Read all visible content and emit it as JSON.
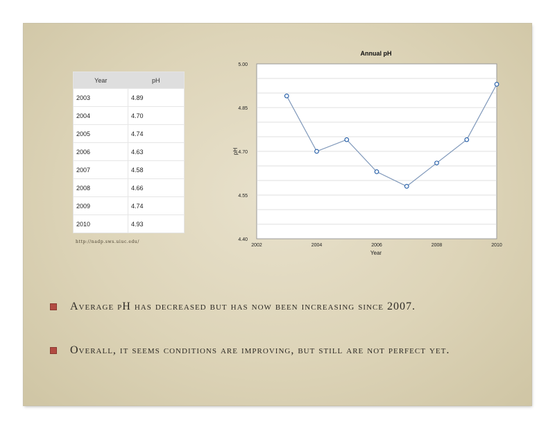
{
  "table": {
    "headers": [
      "Year",
      "pH"
    ],
    "rows": [
      [
        "2003",
        "4.89"
      ],
      [
        "2004",
        "4.70"
      ],
      [
        "2005",
        "4.74"
      ],
      [
        "2006",
        "4.63"
      ],
      [
        "2007",
        "4.58"
      ],
      [
        "2008",
        "4.66"
      ],
      [
        "2009",
        "4.74"
      ],
      [
        "2010",
        "4.93"
      ]
    ]
  },
  "source": "http://nadp.sws.uiuc.edu/",
  "chart_data": {
    "type": "line",
    "title": "Annual pH",
    "xlabel": "Year",
    "ylabel": "pH",
    "x": [
      2003,
      2004,
      2005,
      2006,
      2007,
      2008,
      2009,
      2010
    ],
    "y": [
      4.89,
      4.7,
      4.74,
      4.63,
      4.58,
      4.66,
      4.74,
      4.93
    ],
    "xlim": [
      2002,
      2010
    ],
    "ylim": [
      4.4,
      5.0
    ],
    "x_ticks": [
      "2002",
      "2004",
      "2006",
      "2008",
      "2010"
    ],
    "y_ticks": [
      "4.40",
      "4.55",
      "4.70",
      "4.85",
      "5.00"
    ],
    "grid": true,
    "colors": {
      "line": "#7f98ba",
      "marker_fill": "#ffffff",
      "marker_stroke": "#1f5aa6"
    }
  },
  "bullets": [
    "Average pH has decreased but has now been increasing since 2007.",
    "Overall, it seems conditions are improving, but still are not perfect yet."
  ]
}
